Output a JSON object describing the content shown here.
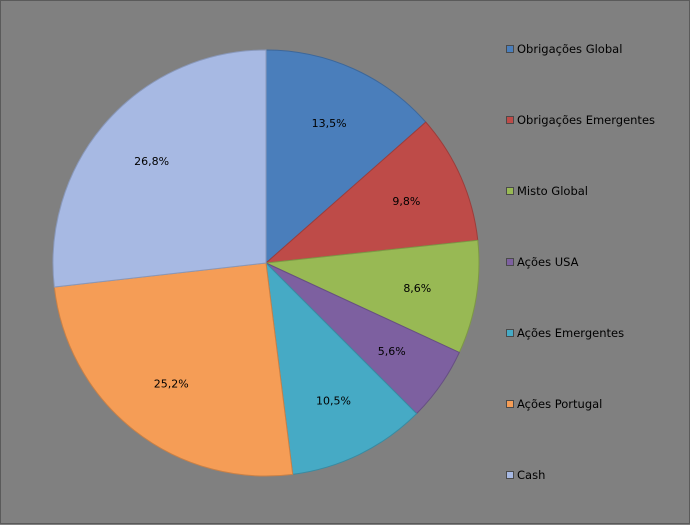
{
  "chart_data": {
    "type": "pie",
    "categories": [
      "Obrigações Global",
      "Obrigações Emergentes",
      "Misto Global",
      "Ações USA",
      "Ações Emergentes",
      "Ações Portugal",
      "Cash"
    ],
    "values": [
      13.5,
      9.8,
      8.6,
      5.6,
      10.5,
      25.2,
      26.8
    ],
    "labels": [
      "13,5%",
      "9,8%",
      "8,6%",
      "5,6%",
      "10,5%",
      "25,2%",
      "26,8%"
    ],
    "colors": [
      "#4A7EBB",
      "#BE4B48",
      "#98B954",
      "#7D60A0",
      "#46AAC5",
      "#F59D56",
      "#A7B9E3"
    ],
    "start_angle": "12 o'clock",
    "direction": "clockwise",
    "legend_position": "right"
  }
}
